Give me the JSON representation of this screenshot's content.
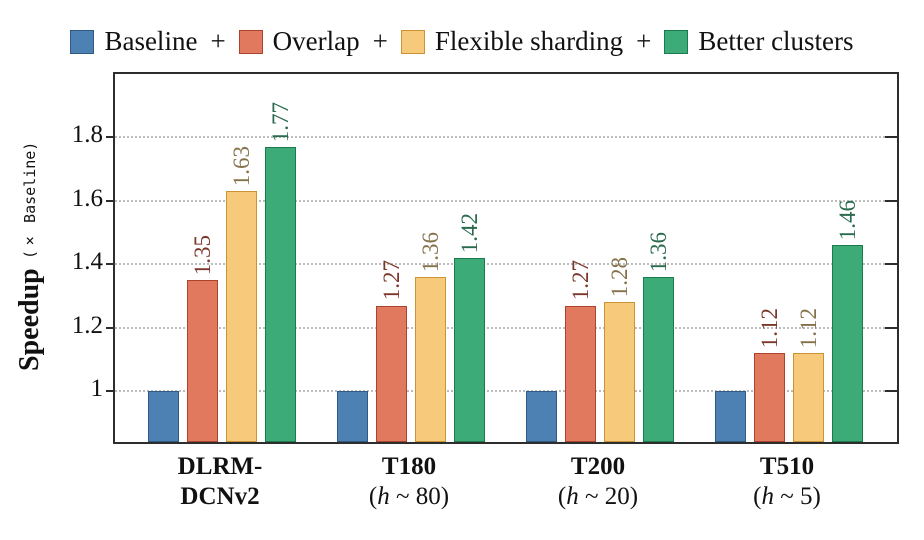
{
  "legend": {
    "separator": "+"
  },
  "y_axis": {
    "label_main": "Speedup",
    "label_sub": "(× Baseline)",
    "tick_labels": [
      "1",
      "1.2",
      "1.4",
      "1.6",
      "1.8"
    ]
  },
  "chart_data": {
    "type": "bar",
    "title": "",
    "ylabel": "Speedup (× Baseline)",
    "ylim": [
      0.84,
      2.0
    ],
    "yticks": [
      1.0,
      1.2,
      1.4,
      1.6,
      1.8
    ],
    "grid": "horizontal-dotted",
    "legend_position": "top",
    "categories": [
      {
        "line1": "DLRM-",
        "line2": "DCNv2",
        "line2_bold": true,
        "italic_h": false
      },
      {
        "line1": "T180",
        "line2": "(h ~ 80)",
        "line2_bold": false,
        "italic_h": true
      },
      {
        "line1": "T200",
        "line2": "(h ~ 20)",
        "line2_bold": false,
        "italic_h": true
      },
      {
        "line1": "T510",
        "line2": "(h ~ 5)",
        "line2_bold": false,
        "italic_h": true
      }
    ],
    "series": [
      {
        "name": "Baseline",
        "color": "#4d80b3",
        "border_color": "#2f5a84",
        "label_color": null,
        "values": [
          1.0,
          1.0,
          1.0,
          1.0
        ],
        "value_labels": [
          null,
          null,
          null,
          null
        ]
      },
      {
        "name": "Overlap",
        "color": "#e0795d",
        "border_color": "#ac432d",
        "label_color": "#7b372b",
        "values": [
          1.35,
          1.27,
          1.27,
          1.12
        ],
        "value_labels": [
          "1.35",
          "1.27",
          "1.27",
          "1.12"
        ]
      },
      {
        "name": "Flexible sharding",
        "color": "#f6c97b",
        "border_color": "#ca9434",
        "label_color": "#85724a",
        "values": [
          1.63,
          1.36,
          1.28,
          1.12
        ],
        "value_labels": [
          "1.63",
          "1.36",
          "1.28",
          "1.12"
        ]
      },
      {
        "name": "Better clusters",
        "color": "#3cab77",
        "border_color": "#1b7b4b",
        "label_color": "#2a6b4e",
        "values": [
          1.77,
          1.42,
          1.36,
          1.46
        ],
        "value_labels": [
          "1.77",
          "1.42",
          "1.36",
          "1.46"
        ]
      }
    ]
  }
}
